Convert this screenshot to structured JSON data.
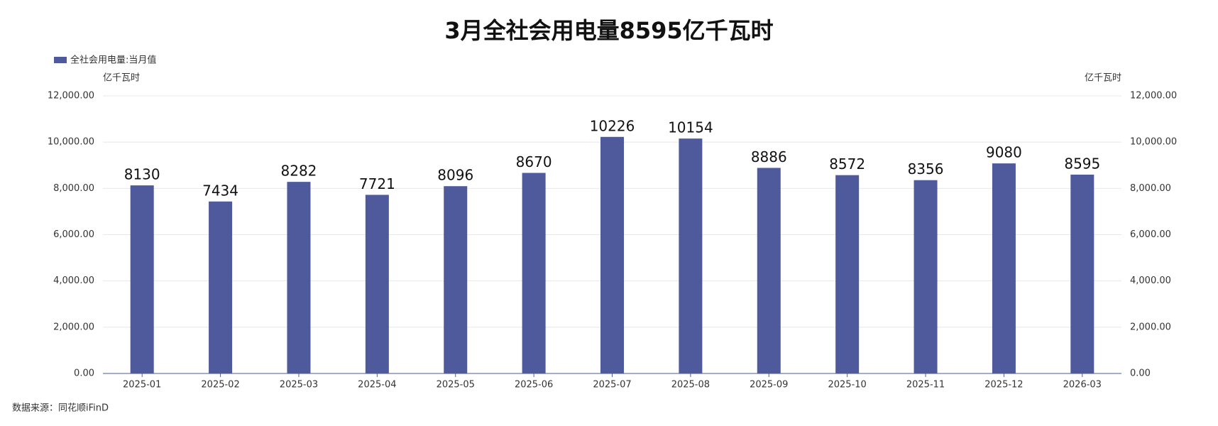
{
  "chart_data": {
    "type": "bar",
    "title": "3月全社会用电量8595亿千瓦时",
    "y_axis_label": "亿千瓦时",
    "y2_axis_label": "亿千瓦时",
    "source": "数据来源：同花顺iFinD",
    "categories": [
      "2025-01",
      "2025-02",
      "2025-03",
      "2025-04",
      "2025-05",
      "2025-06",
      "2025-07",
      "2025-08",
      "2025-09",
      "2025-10",
      "2025-11",
      "2025-12",
      "2026-03"
    ],
    "series": [
      {
        "name": "全社会用电量:当月值",
        "color": "#4e5a9b",
        "values": [
          8130,
          7434,
          8282,
          7721,
          8096,
          8670,
          10226,
          10154,
          8886,
          8572,
          8356,
          9080,
          8595
        ]
      }
    ],
    "ylim": [
      0,
      12000
    ],
    "yticks": [
      {
        "value": 0,
        "label": "0.00"
      },
      {
        "value": 2000,
        "label": "2,000.00"
      },
      {
        "value": 4000,
        "label": "4,000.00"
      },
      {
        "value": 6000,
        "label": "6,000.00"
      },
      {
        "value": 8000,
        "label": "8,000.00"
      },
      {
        "value": 10000,
        "label": "10,000.00"
      },
      {
        "value": 12000,
        "label": "12,000.00"
      }
    ],
    "y2lim": [
      0,
      12000
    ],
    "y2ticks": [
      {
        "value": 0,
        "label": "0.00"
      },
      {
        "value": 2000,
        "label": "2,000.00"
      },
      {
        "value": 4000,
        "label": "4,000.00"
      },
      {
        "value": 6000,
        "label": "6,000.00"
      },
      {
        "value": 8000,
        "label": "8,000.00"
      },
      {
        "value": 10000,
        "label": "10,000.00"
      },
      {
        "value": 12000,
        "label": "12,000.00"
      }
    ],
    "grid": true,
    "legend": "top-left"
  }
}
